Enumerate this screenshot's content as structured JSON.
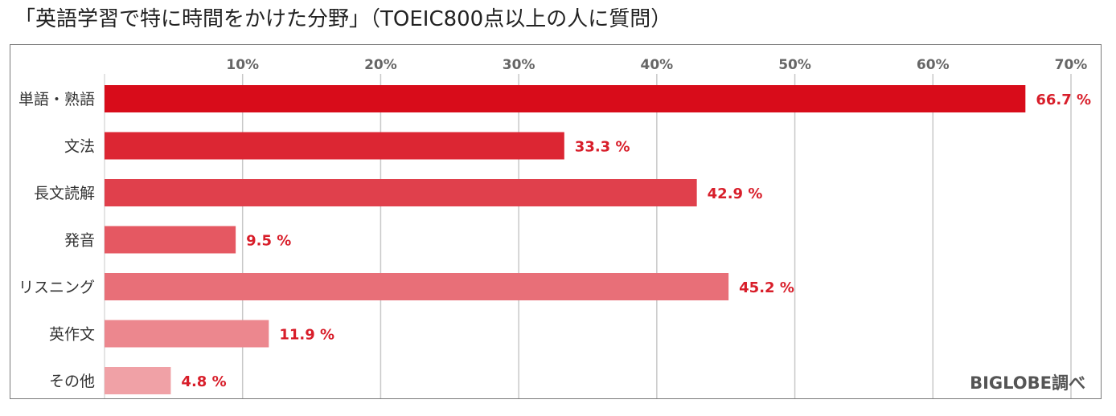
{
  "title": "「英語学習で特に時間をかけた分野」（TOEIC800点以上の人に質問）",
  "source": "BIGLOBE調べ",
  "chart_data": {
    "type": "bar",
    "orientation": "horizontal",
    "categories": [
      "単語・熟語",
      "文法",
      "長文読解",
      "発音",
      "リスニング",
      "英作文",
      "その他"
    ],
    "values": [
      66.7,
      33.3,
      42.9,
      9.5,
      45.2,
      11.9,
      4.8
    ],
    "value_labels": [
      "66.7 %",
      "33.3 %",
      "42.9 %",
      "9.5 %",
      "45.2 %",
      "11.9 %",
      "4.8 %"
    ],
    "xlim": [
      0,
      70
    ],
    "xticks": [
      10,
      20,
      30,
      40,
      50,
      60,
      70
    ],
    "xtick_labels": [
      "10%",
      "20%",
      "30%",
      "40%",
      "50%",
      "60%",
      "70%"
    ],
    "xaxis_position": "top",
    "grid": true,
    "bar_colors": [
      "#d80c1a",
      "#dc2633",
      "#e0404c",
      "#e55862",
      "#e86f78",
      "#ec878e",
      "#f0a1a6"
    ],
    "label_color": "#d81e2a"
  }
}
